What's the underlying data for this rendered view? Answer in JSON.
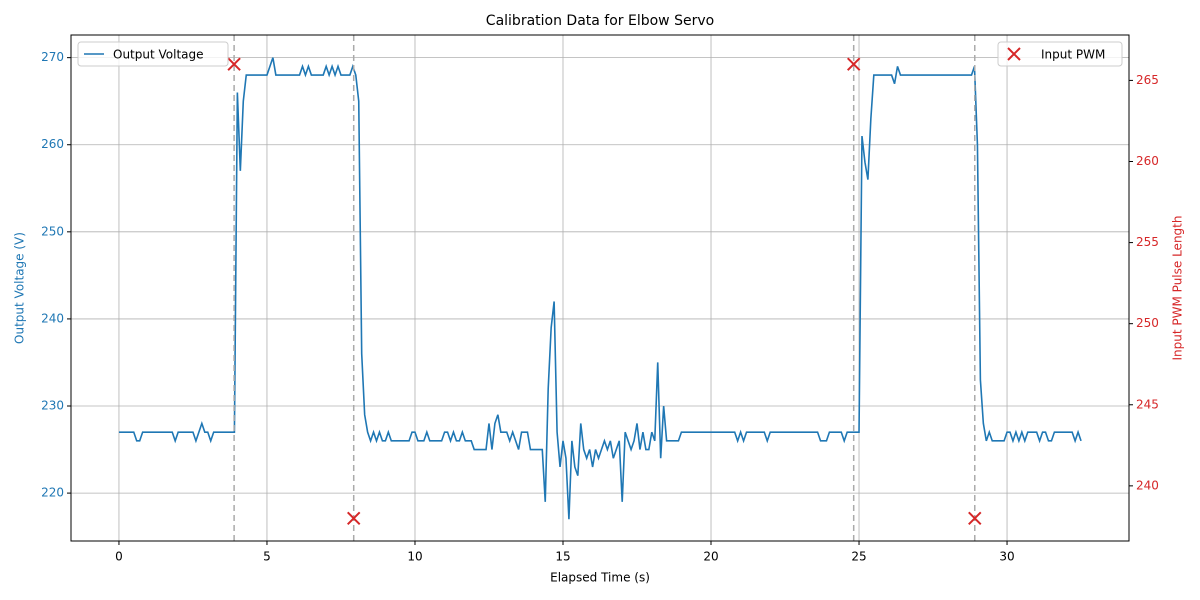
{
  "chart_data": {
    "type": "line",
    "title": "Calibration Data for Elbow Servo",
    "x_label": "Elapsed Time (s)",
    "y_label": "Output Voltage (V)",
    "y2_label": "Input PWM Pulse Length",
    "xlim": [
      -1.62,
      34.12
    ],
    "xticks": [
      0,
      5,
      10,
      15,
      20,
      25,
      30
    ],
    "ylim": [
      214.5,
      272.6
    ],
    "yticks": [
      220,
      230,
      240,
      250,
      260,
      270
    ],
    "y2lim": [
      236.6,
      267.8
    ],
    "y2ticks": [
      240,
      245,
      250,
      255,
      260,
      265
    ],
    "grid": true,
    "series": [
      {
        "name": "Output Voltage",
        "type": "line",
        "color": "#1f77b4",
        "legend": "upper left",
        "x": [
          0,
          0.5,
          0.6,
          0.7,
          0.8,
          1.8,
          1.9,
          2.0,
          2.5,
          2.6,
          2.7,
          2.8,
          2.9,
          3.0,
          3.1,
          3.2,
          3.9,
          4.0,
          4.1,
          4.2,
          4.3,
          5.0,
          5.1,
          5.2,
          5.3,
          6.1,
          6.2,
          6.3,
          6.4,
          6.5,
          6.9,
          7.0,
          7.1,
          7.2,
          7.3,
          7.4,
          7.5,
          7.8,
          7.9,
          8.0,
          8.1,
          8.2,
          8.3,
          8.4,
          8.5,
          8.6,
          8.7,
          8.8,
          8.9,
          9.0,
          9.1,
          9.2,
          9.8,
          9.9,
          10.0,
          10.1,
          10.3,
          10.4,
          10.5,
          10.9,
          11.0,
          11.1,
          11.2,
          11.3,
          11.4,
          11.5,
          11.6,
          11.7,
          11.9,
          12.0,
          12.4,
          12.5,
          12.6,
          12.7,
          12.8,
          12.9,
          13.1,
          13.2,
          13.3,
          13.5,
          13.6,
          13.8,
          13.9,
          14.3,
          14.4,
          14.5,
          14.6,
          14.7,
          14.8,
          14.9,
          15.0,
          15.1,
          15.2,
          15.3,
          15.4,
          15.5,
          15.6,
          15.7,
          15.8,
          15.9,
          16.0,
          16.1,
          16.2,
          16.3,
          16.4,
          16.5,
          16.6,
          16.7,
          16.8,
          16.9,
          17.0,
          17.1,
          17.2,
          17.3,
          17.4,
          17.5,
          17.6,
          17.7,
          17.8,
          17.9,
          18.0,
          18.1,
          18.2,
          18.3,
          18.4,
          18.5,
          18.9,
          19.0,
          20.8,
          20.9,
          21.0,
          21.1,
          21.2,
          21.8,
          21.9,
          22.0,
          23.6,
          23.7,
          23.9,
          24.0,
          24.4,
          24.5,
          24.6,
          25.0,
          25.1,
          25.2,
          25.3,
          25.4,
          25.5,
          26.1,
          26.2,
          26.3,
          26.4,
          28.8,
          28.9,
          29.0,
          29.1,
          29.2,
          29.3,
          29.4,
          29.5,
          29.9,
          30.0,
          30.1,
          30.2,
          30.3,
          30.4,
          30.5,
          30.6,
          30.7,
          31.0,
          31.1,
          31.2,
          31.3,
          31.4,
          31.5,
          31.6,
          32.2,
          32.3,
          32.4,
          32.5
        ],
        "values": [
          227,
          227,
          226,
          226,
          227,
          227,
          226,
          227,
          227,
          226,
          227,
          228,
          227,
          227,
          226,
          227,
          227,
          266,
          257,
          265,
          268,
          268,
          269,
          270,
          268,
          268,
          269,
          268,
          269,
          268,
          268,
          269,
          268,
          269,
          268,
          269,
          268,
          268,
          269,
          268,
          265,
          236,
          229,
          227,
          226,
          227,
          226,
          227,
          226,
          226,
          227,
          226,
          226,
          227,
          227,
          226,
          226,
          227,
          226,
          226,
          227,
          227,
          226,
          227,
          226,
          226,
          227,
          226,
          226,
          225,
          225,
          228,
          225,
          228,
          229,
          227,
          227,
          226,
          227,
          225,
          227,
          227,
          225,
          225,
          219,
          232,
          239,
          242,
          227,
          223,
          226,
          224,
          217,
          226,
          223,
          222,
          228,
          225,
          224,
          225,
          223,
          225,
          224,
          225,
          226,
          225,
          226,
          224,
          225,
          226,
          219,
          227,
          226,
          225,
          226,
          228,
          225,
          227,
          225,
          225,
          227,
          226,
          235,
          224,
          230,
          226,
          226,
          227,
          227,
          226,
          227,
          226,
          227,
          227,
          226,
          227,
          227,
          226,
          226,
          227,
          227,
          226,
          227,
          227,
          261,
          258,
          256,
          263,
          268,
          268,
          267,
          269,
          268,
          268,
          269,
          260,
          233,
          228,
          226,
          227,
          226,
          226,
          227,
          227,
          226,
          227,
          226,
          227,
          226,
          227,
          227,
          226,
          227,
          227,
          226,
          226,
          227,
          227,
          226,
          227,
          226
        ]
      },
      {
        "name": "Input PWM",
        "type": "scatter",
        "axis": "y2",
        "marker": "x",
        "color": "#d62728",
        "legend": "upper right",
        "vlines": true,
        "x": [
          3.89,
          7.93,
          24.82,
          28.91
        ],
        "values": [
          266,
          238,
          266,
          238
        ]
      }
    ]
  }
}
